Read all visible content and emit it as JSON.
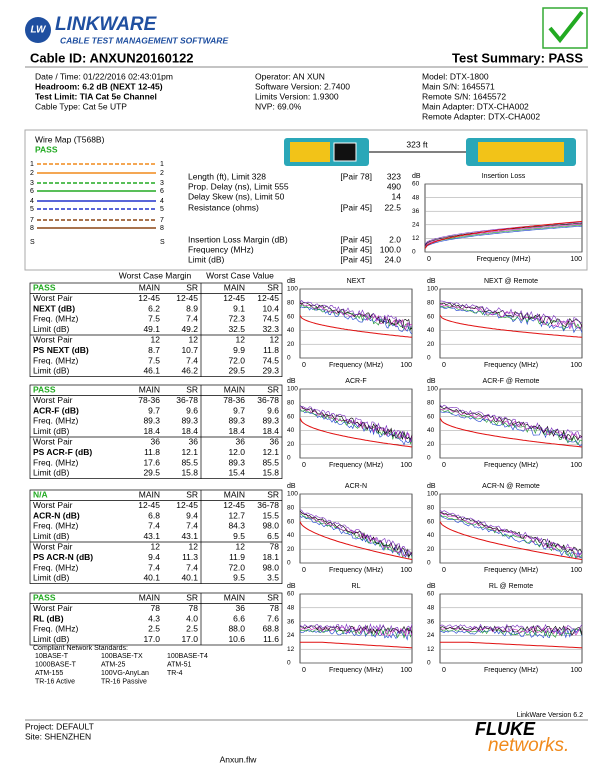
{
  "header": {
    "logo": "LINKWARE",
    "logo_sub": "CABLE TEST MANAGEMENT SOFTWARE",
    "cable_id": "Cable ID: ANXUN20160122",
    "summary": "Test Summary: PASS"
  },
  "info": {
    "columns": [
      [
        "Date / Time: 01/22/2016 02:43:01pm",
        "Headroom: 6.2 dB (NEXT 12-45)",
        "Test Limit: TIA Cat 5e Channel",
        "Cable Type: Cat 5e UTP"
      ],
      [
        "Operator: AN XUN",
        "Software Version: 2.7400",
        "Limits Version: 1.9300",
        "NVP: 69.0%"
      ],
      [
        "Model: DTX-1800",
        "Main S/N: 1645571",
        "Remote S/N: 1645572",
        "Main Adapter: DTX-CHA002",
        "Remote Adapter: DTX-CHA002"
      ]
    ]
  },
  "wire_map": {
    "title": "Wire Map (T568B)",
    "status": "PASS",
    "pins_left": [
      "1",
      "2",
      "3",
      "6",
      "4",
      "5",
      "7",
      "8",
      "S"
    ],
    "pins_right": [
      "1",
      "2",
      "3",
      "6",
      "4",
      "5",
      "7",
      "8",
      "S"
    ],
    "length": "323 ft"
  },
  "measurements": [
    {
      "label": "Length (ft), Limit 328",
      "pair": "[Pair 78]",
      "value": "323"
    },
    {
      "label": "Prop. Delay (ns), Limit 555",
      "value": "490"
    },
    {
      "label": "Delay Skew (ns), Limit 50",
      "value": "14"
    },
    {
      "label": "Resistance (ohms)",
      "pair": "[Pair 45]",
      "value": "22.5"
    },
    {
      "label": "Insertion Loss Margin (dB)",
      "pair": "[Pair 45]",
      "value": "2.0"
    },
    {
      "label": "Frequency (MHz)",
      "pair": "[Pair 45]",
      "value": "100.0"
    },
    {
      "label": "Limit (dB)",
      "pair": "[Pair 45]",
      "value": "24.0"
    }
  ],
  "worst_case": {
    "header_margin": "Worst Case Margin",
    "header_value": "Worst Case Value",
    "blocks": [
      [
        [
          "PASS",
          "MAIN",
          "SR",
          "MAIN",
          "SR"
        ],
        [
          "Worst Pair",
          "12-45",
          "12-45",
          "12-45",
          "12-45"
        ],
        [
          "NEXT (dB)",
          "6.2",
          "8.9",
          "9.1",
          "10.4"
        ],
        [
          "Freq. (MHz)",
          "7.5",
          "7.4",
          "72.3",
          "74.5"
        ],
        [
          "Limit (dB)",
          "49.1",
          "49.2",
          "32.5",
          "32.3"
        ],
        [
          "Worst Pair",
          "12",
          "12",
          "12",
          "12"
        ],
        [
          "PS NEXT (dB)",
          "8.7",
          "10.7",
          "9.9",
          "11.8"
        ],
        [
          "Freq. (MHz)",
          "7.5",
          "7.4",
          "72.0",
          "74.5"
        ],
        [
          "Limit (dB)",
          "46.1",
          "46.2",
          "29.5",
          "29.3"
        ]
      ],
      [
        [
          "PASS",
          "MAIN",
          "SR",
          "MAIN",
          "SR"
        ],
        [
          "Worst Pair",
          "78-36",
          "36-78",
          "78-36",
          "36-78"
        ],
        [
          "ACR-F (dB)",
          "9.7",
          "9.6",
          "9.7",
          "9.6"
        ],
        [
          "Freq. (MHz)",
          "89.3",
          "89.3",
          "89.3",
          "89.3"
        ],
        [
          "Limit (dB)",
          "18.4",
          "18.4",
          "18.4",
          "18.4"
        ],
        [
          "Worst Pair",
          "36",
          "36",
          "36",
          "36"
        ],
        [
          "PS ACR-F (dB)",
          "11.8",
          "12.1",
          "12.0",
          "12.1"
        ],
        [
          "Freq. (MHz)",
          "17.6",
          "85.5",
          "89.3",
          "85.5"
        ],
        [
          "Limit (dB)",
          "29.5",
          "15.8",
          "15.4",
          "15.8"
        ]
      ],
      [
        [
          "N/A",
          "MAIN",
          "SR",
          "MAIN",
          "SR"
        ],
        [
          "Worst Pair",
          "12-45",
          "12-45",
          "12-45",
          "36-78"
        ],
        [
          "ACR-N (dB)",
          "6.8",
          "9.4",
          "12.7",
          "15.5"
        ],
        [
          "Freq. (MHz)",
          "7.4",
          "7.4",
          "84.3",
          "98.0"
        ],
        [
          "Limit (dB)",
          "43.1",
          "43.1",
          "9.5",
          "6.5"
        ],
        [
          "Worst Pair",
          "12",
          "12",
          "12",
          "78"
        ],
        [
          "PS ACR-N (dB)",
          "9.4",
          "11.3",
          "11.9",
          "18.1"
        ],
        [
          "Freq. (MHz)",
          "7.4",
          "7.4",
          "72.0",
          "98.0"
        ],
        [
          "Limit (dB)",
          "40.1",
          "40.1",
          "9.5",
          "3.5"
        ]
      ],
      [
        [
          "PASS",
          "MAIN",
          "SR",
          "MAIN",
          "SR"
        ],
        [
          "Worst Pair",
          "78",
          "78",
          "36",
          "78"
        ],
        [
          "RL (dB)",
          "4.3",
          "4.0",
          "6.6",
          "7.6"
        ],
        [
          "Freq. (MHz)",
          "2.5",
          "2.5",
          "88.0",
          "68.8"
        ],
        [
          "Limit (dB)",
          "17.0",
          "17.0",
          "10.6",
          "11.6"
        ]
      ]
    ]
  },
  "charts": [
    {
      "title": "Insertion Loss",
      "unit": "dB",
      "ylim": [
        0,
        60
      ],
      "yticks": [
        0,
        12,
        24,
        36,
        48,
        60
      ],
      "xlabel": "Frequency (MHz)",
      "xticks": [
        0,
        100
      ]
    },
    {
      "title": "NEXT",
      "unit": "dB",
      "ylim": [
        0,
        100
      ],
      "yticks": [
        0,
        20,
        40,
        60,
        80,
        100
      ],
      "xlabel": "Frequency (MHz)",
      "xticks": [
        0,
        100
      ]
    },
    {
      "title": "NEXT @ Remote",
      "unit": "dB",
      "ylim": [
        0,
        100
      ],
      "yticks": [
        0,
        20,
        40,
        60,
        80,
        100
      ],
      "xlabel": "Frequency (MHz)",
      "xticks": [
        0,
        100
      ]
    },
    {
      "title": "ACR-F",
      "unit": "dB",
      "ylim": [
        0,
        100
      ],
      "yticks": [
        0,
        20,
        40,
        60,
        80,
        100
      ],
      "xlabel": "Frequency (MHz)",
      "xticks": [
        0,
        100
      ]
    },
    {
      "title": "ACR-F @ Remote",
      "unit": "dB",
      "ylim": [
        0,
        100
      ],
      "yticks": [
        0,
        20,
        40,
        60,
        80,
        100
      ],
      "xlabel": "Frequency (MHz)",
      "xticks": [
        0,
        100
      ]
    },
    {
      "title": "ACR-N",
      "unit": "dB",
      "ylim": [
        0,
        100
      ],
      "yticks": [
        0,
        20,
        40,
        60,
        80,
        100
      ],
      "xlabel": "Frequency (MHz)",
      "xticks": [
        0,
        100
      ]
    },
    {
      "title": "ACR-N @ Remote",
      "unit": "dB",
      "ylim": [
        0,
        100
      ],
      "yticks": [
        0,
        20,
        40,
        60,
        80,
        100
      ],
      "xlabel": "Frequency (MHz)",
      "xticks": [
        0,
        100
      ]
    },
    {
      "title": "RL",
      "unit": "dB",
      "ylim": [
        0,
        60
      ],
      "yticks": [
        0,
        12,
        24,
        36,
        48,
        60
      ],
      "xlabel": "Frequency (MHz)",
      "xticks": [
        0,
        100
      ]
    },
    {
      "title": "RL @ Remote",
      "unit": "dB",
      "ylim": [
        0,
        60
      ],
      "yticks": [
        0,
        12,
        24,
        36,
        48,
        60
      ],
      "xlabel": "Frequency (MHz)",
      "xticks": [
        0,
        100
      ]
    }
  ],
  "standards": {
    "title": "Compliant Network Standards:",
    "items": [
      "10BASE-T",
      "100BASE-TX",
      "100BASE-T4",
      "1000BASE-T",
      "ATM-25",
      "ATM-51",
      "ATM-155",
      "100VG-AnyLan",
      "TR-4",
      "TR-16 Active",
      "TR-16 Passive"
    ]
  },
  "footer": {
    "version": "LinkWare Version 6.2",
    "project": "Project: DEFAULT",
    "site": "Site: SHENZHEN",
    "brand": "FLUKE",
    "brand_sub": "networks.",
    "file": "Anxun.flw"
  }
}
